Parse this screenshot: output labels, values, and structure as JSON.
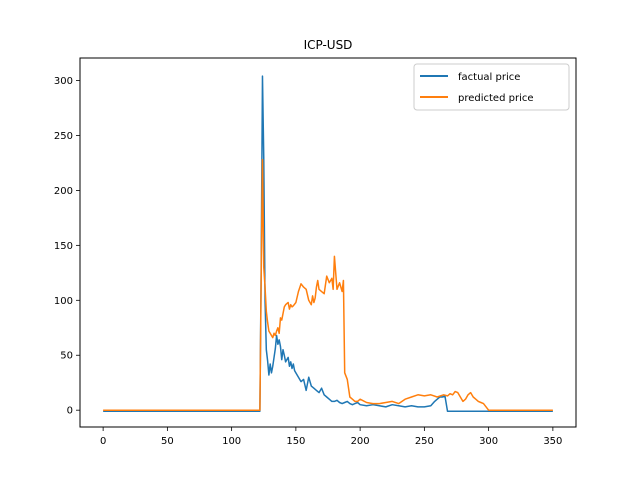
{
  "chart_data": {
    "type": "line",
    "title": "ICP-USD",
    "xlabel": "",
    "ylabel": "",
    "xlim": [
      -18,
      368
    ],
    "ylim": [
      -15.3,
      320.5
    ],
    "xticks": [
      0,
      50,
      100,
      150,
      200,
      250,
      300,
      350
    ],
    "yticks": [
      0,
      50,
      100,
      150,
      200,
      250,
      300
    ],
    "grid": false,
    "legend_position": "upper right",
    "series": [
      {
        "name": "factual price",
        "color": "#1f77b4",
        "x": [
          0,
          50,
          100,
          122,
          123,
          124,
          125,
          126,
          127,
          128,
          129,
          130,
          131,
          132,
          133,
          134,
          135,
          136,
          137,
          138,
          139,
          140,
          141,
          142,
          143,
          144,
          145,
          146,
          147,
          148,
          149,
          150,
          152,
          154,
          156,
          158,
          160,
          162,
          164,
          166,
          168,
          170,
          172,
          174,
          176,
          178,
          180,
          182,
          184,
          186,
          188,
          190,
          192,
          194,
          196,
          198,
          200,
          205,
          210,
          215,
          220,
          225,
          230,
          235,
          240,
          245,
          250,
          255,
          258,
          260,
          262,
          264,
          266,
          268,
          270,
          275,
          300,
          325,
          350
        ],
        "y": [
          -1,
          -1,
          -1,
          -1,
          130,
          304,
          230,
          100,
          55,
          45,
          32,
          42,
          34,
          40,
          48,
          56,
          68,
          60,
          64,
          58,
          46,
          55,
          50,
          44,
          46,
          48,
          40,
          44,
          38,
          42,
          36,
          34,
          30,
          26,
          28,
          18,
          30,
          22,
          20,
          18,
          16,
          20,
          14,
          12,
          10,
          8,
          8,
          9,
          7,
          6,
          7,
          8,
          6,
          5,
          6,
          7,
          5,
          4,
          5,
          4,
          3,
          5,
          4,
          3,
          4,
          3,
          3,
          4,
          8,
          10,
          12,
          12,
          13,
          -1,
          -1,
          -1,
          -1,
          -1,
          -1
        ]
      },
      {
        "name": "predicted price",
        "color": "#ff7f0e",
        "x": [
          0,
          50,
          100,
          122,
          123,
          124,
          125,
          126,
          127,
          128,
          129,
          130,
          131,
          132,
          133,
          134,
          135,
          136,
          137,
          138,
          139,
          140,
          141,
          142,
          143,
          144,
          145,
          146,
          147,
          148,
          150,
          152,
          154,
          156,
          158,
          160,
          162,
          163,
          164,
          165,
          166,
          167,
          168,
          170,
          172,
          174,
          176,
          178,
          179,
          180,
          182,
          184,
          186,
          187,
          188,
          190,
          192,
          194,
          196,
          198,
          200,
          205,
          210,
          215,
          220,
          225,
          230,
          235,
          240,
          245,
          250,
          255,
          260,
          265,
          268,
          270,
          272,
          274,
          276,
          278,
          280,
          282,
          284,
          286,
          288,
          290,
          292,
          294,
          296,
          300,
          350
        ],
        "y": [
          0,
          0,
          0,
          0,
          120,
          228,
          130,
          112,
          90,
          80,
          72,
          70,
          68,
          66,
          70,
          68,
          72,
          75,
          70,
          84,
          82,
          88,
          94,
          96,
          97,
          98,
          92,
          96,
          94,
          95,
          98,
          108,
          115,
          112,
          110,
          100,
          96,
          104,
          98,
          102,
          112,
          118,
          110,
          108,
          106,
          122,
          116,
          120,
          110,
          140,
          110,
          116,
          108,
          118,
          34,
          28,
          12,
          10,
          8,
          8,
          10,
          7,
          6,
          6,
          7,
          8,
          6,
          10,
          12,
          14,
          13,
          14,
          12,
          14,
          13,
          15,
          14,
          17,
          16,
          12,
          8,
          10,
          14,
          16,
          12,
          10,
          8,
          7,
          6,
          0,
          0
        ]
      }
    ]
  }
}
